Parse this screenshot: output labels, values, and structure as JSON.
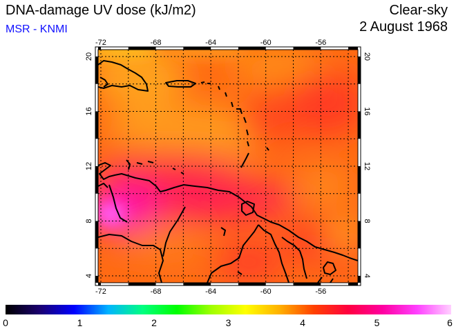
{
  "header": {
    "title": "DNA-damage UV dose (kJ/m2)",
    "credit": "MSR - KNMI",
    "condition": "Clear-sky",
    "date": "2 August 1968"
  },
  "map": {
    "lon_ticks": [
      "-72",
      "-68",
      "-64",
      "-60",
      "-56"
    ],
    "lat_ticks": [
      "20",
      "16",
      "12",
      "8",
      "4"
    ],
    "lon_range": [
      -72.2,
      -53.3
    ],
    "lat_range": [
      3.5,
      20.5
    ]
  },
  "colorbar": {
    "labels": [
      "0",
      "1",
      "2",
      "3",
      "4",
      "5",
      "6"
    ],
    "min": 0,
    "max": 6,
    "stops": [
      "#000000",
      "#1a0070",
      "#0000ff",
      "#00b4ff",
      "#00ff80",
      "#00ff00",
      "#a0ff00",
      "#ffff00",
      "#ffb000",
      "#ff4000",
      "#ff0040",
      "#ff00a0",
      "#ff40ff",
      "#ffd0ff"
    ]
  }
}
